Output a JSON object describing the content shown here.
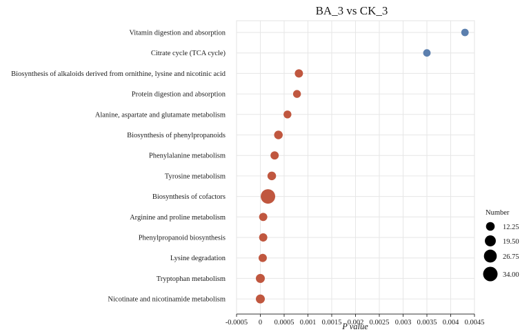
{
  "chart_data": {
    "type": "scatter",
    "title": "BA_3 vs CK_3",
    "xlabel": "P value",
    "ylabel": "",
    "xlim": [
      -0.0005,
      0.0045
    ],
    "x_ticks": [
      -0.0005,
      0,
      0.0005,
      0.001,
      0.0015,
      0.002,
      0.0025,
      0.003,
      0.0035,
      0.004,
      0.0045
    ],
    "x_tick_labels": [
      "-0.0005",
      "0",
      "0.0005",
      "0.001",
      "0.0015",
      "0.002",
      "0.0025",
      "0.003",
      "0.0035",
      "0.004",
      "0.0045"
    ],
    "grid": true,
    "color_low": "#c0573f",
    "color_high": "#5b7fae",
    "points": [
      {
        "label": "Vitamin digestion and absorption",
        "x": 0.0043,
        "size": 9
      },
      {
        "label": "Citrate cycle (TCA cycle)",
        "x": 0.0035,
        "size": 9
      },
      {
        "label": "Biosynthesis of alkaloids derived from ornithine, lysine and nicotinic acid",
        "x": 0.00081,
        "size": 11
      },
      {
        "label": "Protein digestion and absorption",
        "x": 0.00077,
        "size": 10
      },
      {
        "label": "Alanine, aspartate and glutamate metabolism",
        "x": 0.00057,
        "size": 10
      },
      {
        "label": "Biosynthesis of phenylpropanoids",
        "x": 0.00038,
        "size": 12
      },
      {
        "label": "Phenylalanine metabolism",
        "x": 0.0003,
        "size": 11
      },
      {
        "label": "Tyrosine metabolism",
        "x": 0.00024,
        "size": 12
      },
      {
        "label": "Biosynthesis of cofactors",
        "x": 0.00016,
        "size": 34
      },
      {
        "label": "Arginine and proline metabolism",
        "x": 6e-05,
        "size": 11
      },
      {
        "label": "Phenylpropanoid biosynthesis",
        "x": 6e-05,
        "size": 11
      },
      {
        "label": "Lysine degradation",
        "x": 5e-05,
        "size": 11
      },
      {
        "label": "Tryptophan metabolism",
        "x": 0.0,
        "size": 13
      },
      {
        "label": "Nicotinate and nicotinamide metabolism",
        "x": 0.0,
        "size": 13
      }
    ],
    "legend": {
      "title": "Number",
      "entries": [
        {
          "label": "12.25",
          "value": 12.25
        },
        {
          "label": "19.50",
          "value": 19.5
        },
        {
          "label": "26.75",
          "value": 26.75
        },
        {
          "label": "34.00",
          "value": 34
        }
      ],
      "placement": "right",
      "color": "#000000"
    }
  }
}
